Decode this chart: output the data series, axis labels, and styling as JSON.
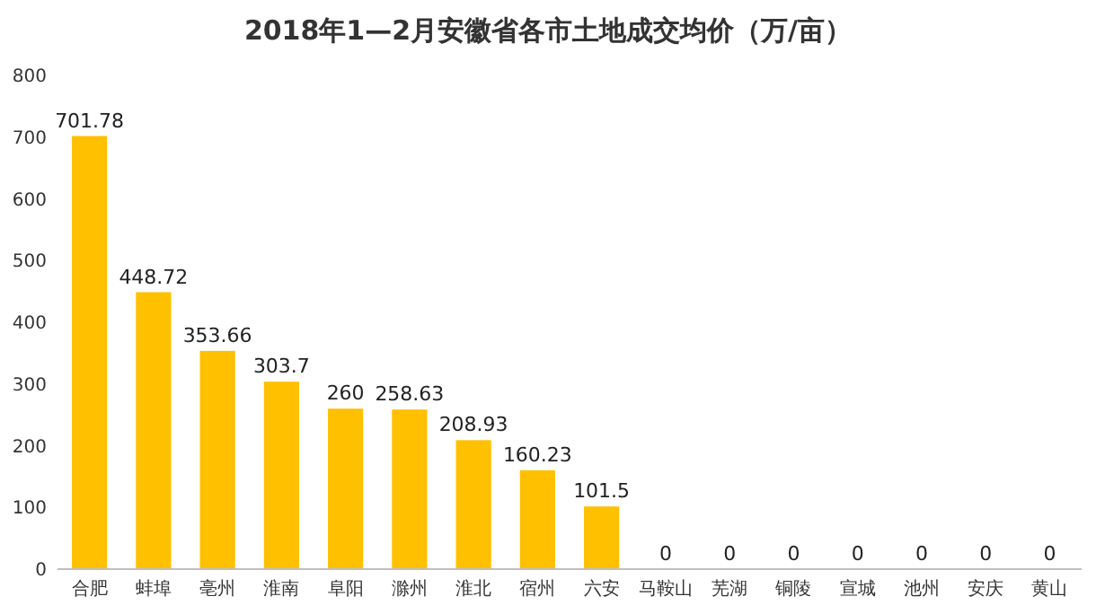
{
  "chart_data": {
    "type": "bar",
    "title": "2018年1—2月安徽省各市土地成交均价（万/亩）",
    "categories": [
      "合肥",
      "蚌埠",
      "亳州",
      "淮南",
      "阜阳",
      "滁州",
      "淮北",
      "宿州",
      "六安",
      "马鞍山",
      "芜湖",
      "铜陵",
      "宣城",
      "池州",
      "安庆",
      "黄山"
    ],
    "values": [
      701.78,
      448.72,
      353.66,
      303.7,
      260,
      258.63,
      208.93,
      160.23,
      101.5,
      0,
      0,
      0,
      0,
      0,
      0,
      0
    ],
    "color": "#ffc000",
    "ylim": [
      0,
      800
    ],
    "yticks": [
      0,
      100,
      200,
      300,
      400,
      500,
      600,
      700,
      800
    ],
    "data_labels": true
  }
}
